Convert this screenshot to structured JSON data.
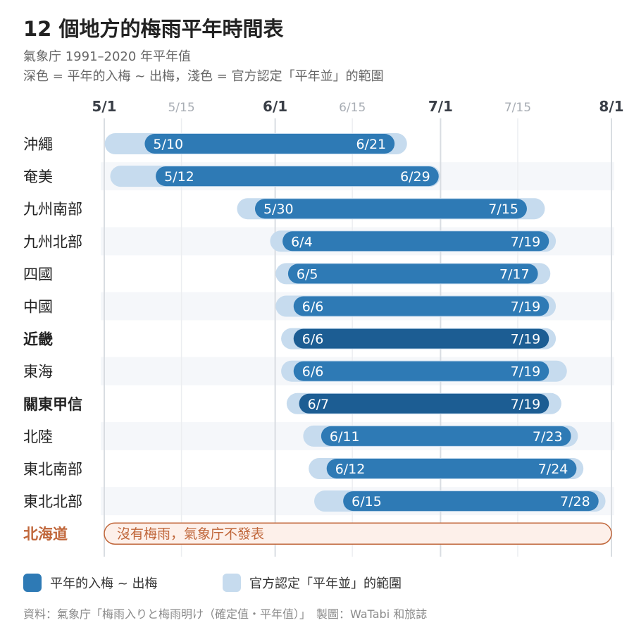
{
  "header": {
    "title": "12 個地方的梅雨平年時間表",
    "subtitle1": "氣象庁 1991–2020 年平年值",
    "subtitle2": "深色 = 平年的入梅 ~ 出梅，淺色 = 官方認定「平年並」的範圍"
  },
  "chart_data": {
    "type": "range-bar",
    "x_axis": {
      "range": [
        "5/1",
        "8/1"
      ],
      "major_ticks": [
        "5/1",
        "6/1",
        "7/1",
        "8/1"
      ],
      "minor_ticks": [
        "5/15",
        "6/15",
        "7/15"
      ]
    },
    "rows": [
      {
        "region": "沖繩",
        "start": "5/10",
        "end": "6/21",
        "range_start": "5/3",
        "range_end": "6/23",
        "start_label": "5/10",
        "end_label": "6/21",
        "bold": false
      },
      {
        "region": "奄美",
        "start": "5/12",
        "end": "6/29",
        "range_start": "5/4",
        "range_end": "6/29",
        "start_label": "5/12",
        "end_label": "6/29",
        "bold": false
      },
      {
        "region": "九州南部",
        "start": "5/30",
        "end": "7/15",
        "range_start": "5/27",
        "range_end": "7/18",
        "start_label": "5/30",
        "end_label": "7/15",
        "bold": false
      },
      {
        "region": "九州北部",
        "start": "6/4",
        "end": "7/19",
        "range_start": "6/2",
        "range_end": "7/20",
        "start_label": "6/4",
        "end_label": "7/19",
        "bold": false
      },
      {
        "region": "四國",
        "start": "6/5",
        "end": "7/17",
        "range_start": "6/3",
        "range_end": "7/19",
        "start_label": "6/5",
        "end_label": "7/17",
        "bold": false
      },
      {
        "region": "中國",
        "start": "6/6",
        "end": "7/19",
        "range_start": "6/3",
        "range_end": "7/20",
        "start_label": "6/6",
        "end_label": "7/19",
        "bold": false
      },
      {
        "region": "近畿",
        "start": "6/6",
        "end": "7/19",
        "range_start": "6/4",
        "range_end": "7/20",
        "start_label": "6/6",
        "end_label": "7/19",
        "bold": true
      },
      {
        "region": "東海",
        "start": "6/6",
        "end": "7/19",
        "range_start": "6/4",
        "range_end": "7/22",
        "start_label": "6/6",
        "end_label": "7/19",
        "bold": false
      },
      {
        "region": "關東甲信",
        "start": "6/7",
        "end": "7/19",
        "range_start": "6/5",
        "range_end": "7/21",
        "start_label": "6/7",
        "end_label": "7/19",
        "bold": true
      },
      {
        "region": "北陸",
        "start": "6/11",
        "end": "7/23",
        "range_start": "6/8",
        "range_end": "7/24",
        "start_label": "6/11",
        "end_label": "7/23",
        "bold": false
      },
      {
        "region": "東北南部",
        "start": "6/12",
        "end": "7/24",
        "range_start": "6/9",
        "range_end": "7/25",
        "start_label": "6/12",
        "end_label": "7/24",
        "bold": false
      },
      {
        "region": "東北北部",
        "start": "6/15",
        "end": "7/28",
        "range_start": "6/10",
        "range_end": "7/29",
        "start_label": "6/15",
        "end_label": "7/28",
        "bold": false
      }
    ],
    "special_row": {
      "region": "北海道",
      "note": "沒有梅雨，氣象庁不發表"
    },
    "legend": [
      {
        "label": "平年的入梅 ~ 出梅",
        "color": "#2e7ab5"
      },
      {
        "label": "官方認定「平年並」的範圍",
        "color": "#c6dbee"
      }
    ]
  },
  "colors": {
    "main_bar": "#2e7ab5",
    "main_bar_bold": "#1c5d93",
    "range_bar": "#c6dbee",
    "hokkaido": "#c0663a",
    "hokkaido_fill": "#fdf0ea",
    "stripe": "#f5f7fa",
    "grid": "#d9dde2"
  },
  "footer": {
    "source": "資料：氣象庁「梅雨入りと梅雨明け（確定值・平年值）」　製圖：WaTabi 和旅誌"
  }
}
